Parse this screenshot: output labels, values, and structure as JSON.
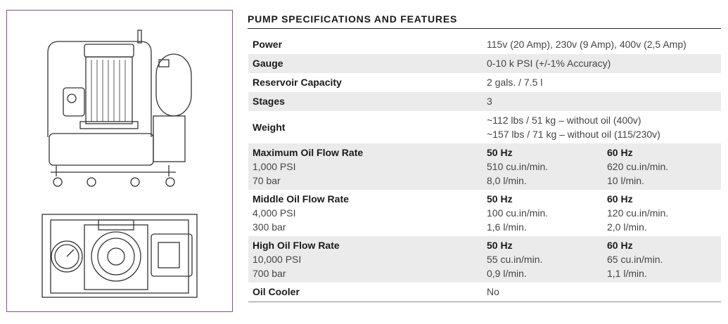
{
  "title": "PUMP SPECIFICATIONS AND FEATURES",
  "specs": [
    {
      "label": "Power",
      "value": "115v (20 Amp), 230v (9 Amp), 400v (2,5 Amp)"
    },
    {
      "label": "Gauge",
      "value": "0-10 k PSI (+/-1% Accuracy)"
    },
    {
      "label": "Reservoir Capacity",
      "value": "2 gals. / 7.5 l"
    },
    {
      "label": "Stages",
      "value": "3"
    },
    {
      "label": "Weight",
      "value": "~112 lbs / 51 kg – without oil (400v)",
      "value2": "~157 lbs / 71 kg – without oil (115/230v)"
    }
  ],
  "flows": [
    {
      "label": "Maximum Oil Flow Rate",
      "psi": "1,000 PSI",
      "bar": "70 bar",
      "hz50": "50 Hz",
      "hz50_cu": "510 cu.in/min.",
      "hz50_l": "8,0 l/min.",
      "hz60": "60 Hz",
      "hz60_cu": "620 cu.in/min.",
      "hz60_l": "10 l/min."
    },
    {
      "label": "Middle Oil Flow Rate",
      "psi": "4,000 PSI",
      "bar": "300 bar",
      "hz50": "50 Hz",
      "hz50_cu": "100 cu.in/min.",
      "hz50_l": "1,6 l/min.",
      "hz60": "60 Hz",
      "hz60_cu": "120 cu.in/min.",
      "hz60_l": "2,0 l/min."
    },
    {
      "label": "High Oil Flow Rate",
      "psi": "10,000 PSI",
      "bar": "700 bar",
      "hz50": "50 Hz",
      "hz50_cu": "55 cu.in/min.",
      "hz50_l": "0,9 l/min.",
      "hz60": "60 Hz",
      "hz60_cu": "65 cu.in/min.",
      "hz60_l": "1,1 l/min."
    }
  ],
  "cooler": {
    "label": "Oil Cooler",
    "value": "No"
  }
}
